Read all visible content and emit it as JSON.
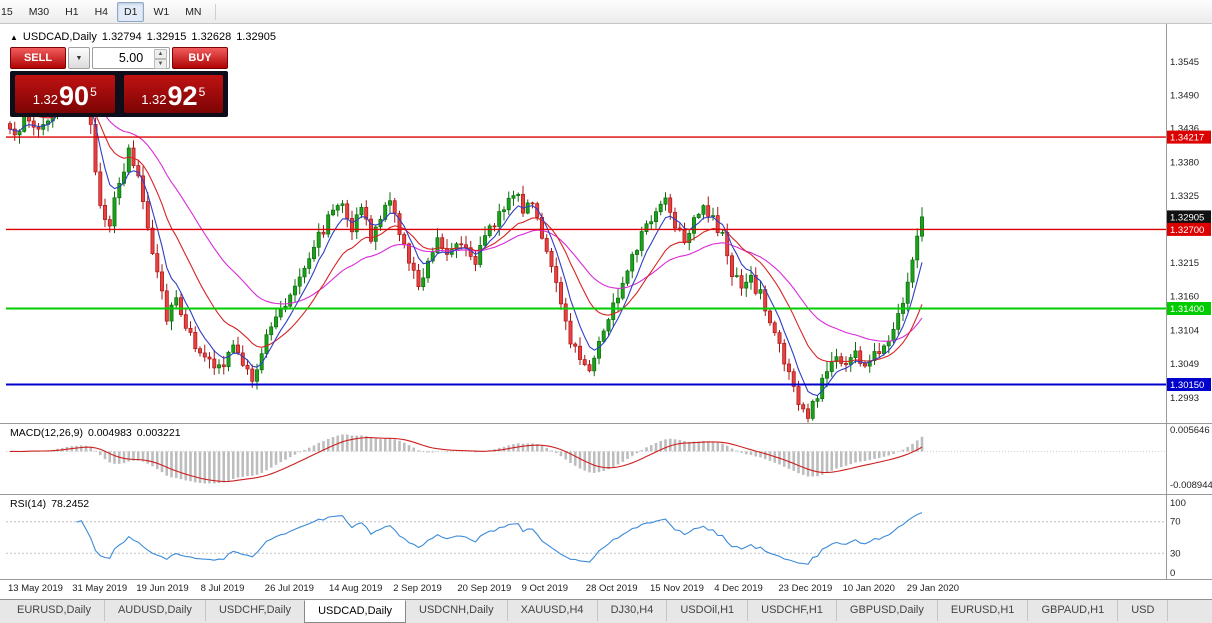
{
  "toolbar": {
    "timeframes": [
      {
        "label": "15",
        "active": false
      },
      {
        "label": "M30",
        "active": false
      },
      {
        "label": "H1",
        "active": false
      },
      {
        "label": "H4",
        "active": false
      },
      {
        "label": "D1",
        "active": true
      },
      {
        "label": "W1",
        "active": false
      },
      {
        "label": "MN",
        "active": false
      }
    ]
  },
  "chart": {
    "title": {
      "marker": "▲",
      "symbol": "USDCAD,Daily",
      "open": "1.32794",
      "high": "1.32915",
      "low": "1.32628",
      "close": "1.32905"
    },
    "trade_panel": {
      "sell_label": "SELL",
      "buy_label": "BUY",
      "volume": "5.00",
      "sell_price": {
        "prefix": "1.32",
        "big": "90",
        "sup": "5"
      },
      "buy_price": {
        "prefix": "1.32",
        "big": "92",
        "sup": "5"
      }
    },
    "price_axis": {
      "ticks": [
        "1.3545",
        "1.3490",
        "1.3436",
        "1.3380",
        "1.3325",
        "1.3215",
        "1.3160",
        "1.3104",
        "1.3049",
        "1.2993"
      ],
      "markers": [
        {
          "text": "1.34217",
          "value": 1.34217,
          "bg": "#dd0000",
          "fg": "#ffffff",
          "line": true,
          "line_width": 1.4
        },
        {
          "text": "1.32905",
          "value": 1.32905,
          "bg": "#111111",
          "fg": "#ffffff",
          "line": false,
          "line_width": 0
        },
        {
          "text": "1.32700",
          "value": 1.327,
          "bg": "#dd0000",
          "fg": "#ffffff",
          "line": true,
          "line_width": 1.4
        },
        {
          "text": "1.31400",
          "value": 1.314,
          "bg": "#00cc00",
          "fg": "#ffffff",
          "line": true,
          "line_width": 2
        },
        {
          "text": "1.30150",
          "value": 1.3015,
          "bg": "#0000cc",
          "fg": "#ffffff",
          "line": true,
          "line_width": 2
        }
      ]
    }
  },
  "macd": {
    "name": "MACD(12,26,9)",
    "main_value": "0.004983",
    "signal_value": "0.003221",
    "ticks": [
      "0.005646",
      "-0.008944"
    ],
    "params": {
      "fast": 12,
      "slow": 26,
      "signal": 9
    }
  },
  "rsi": {
    "name": "RSI(14)",
    "value": "78.2452",
    "ticks": [
      "100",
      "70",
      "30",
      "0"
    ],
    "levels": [
      70,
      30
    ],
    "period": 14
  },
  "date_axis": {
    "labels": [
      "13 May 2019",
      "31 May 2019",
      "19 Jun 2019",
      "8 Jul 2019",
      "26 Jul 2019",
      "14 Aug 2019",
      "2 Sep 2019",
      "20 Sep 2019",
      "9 Oct 2019",
      "28 Oct 2019",
      "15 Nov 2019",
      "4 Dec 2019",
      "23 Dec 2019",
      "10 Jan 2020",
      "29 Jan 2020"
    ]
  },
  "tabs": [
    {
      "label": "EURUSD,Daily",
      "active": false
    },
    {
      "label": "AUDUSD,Daily",
      "active": false
    },
    {
      "label": "USDCHF,Daily",
      "active": false
    },
    {
      "label": "USDCAD,Daily",
      "active": true
    },
    {
      "label": "USDCNH,Daily",
      "active": false
    },
    {
      "label": "XAUUSD,H4",
      "active": false
    },
    {
      "label": "DJ30,H4",
      "active": false
    },
    {
      "label": "USDOil,H1",
      "active": false
    },
    {
      "label": "USDCHF,H1",
      "active": false
    },
    {
      "label": "GBPUSD,Daily",
      "active": false
    },
    {
      "label": "EURUSD,H1",
      "active": false
    },
    {
      "label": "GBPAUD,H1",
      "active": false
    },
    {
      "label": "USD",
      "active": false
    }
  ],
  "chart_data": {
    "type": "candlestick",
    "symbol": "USDCAD",
    "timeframe": "Daily",
    "last_close": 1.32905,
    "candle_count": 193,
    "price_range": {
      "top": 1.3601,
      "bottom": 1.2955
    },
    "horizontal_levels": [
      1.34217,
      1.327,
      1.314,
      1.3015
    ],
    "price_path_anchors": [
      [
        0,
        1.3425
      ],
      [
        3,
        1.345
      ],
      [
        6,
        1.3436
      ],
      [
        9,
        1.3462
      ],
      [
        12,
        1.3492
      ],
      [
        15,
        1.3506
      ],
      [
        17,
        1.3432
      ],
      [
        19,
        1.331
      ],
      [
        21,
        1.3283
      ],
      [
        23,
        1.334
      ],
      [
        25,
        1.3396
      ],
      [
        27,
        1.336
      ],
      [
        29,
        1.3275
      ],
      [
        31,
        1.3205
      ],
      [
        33,
        1.313
      ],
      [
        35,
        1.316
      ],
      [
        38,
        1.3092
      ],
      [
        41,
        1.3066
      ],
      [
        43,
        1.3036
      ],
      [
        45,
        1.3048
      ],
      [
        47,
        1.3082
      ],
      [
        49,
        1.3042
      ],
      [
        51,
        1.3026
      ],
      [
        53,
        1.307
      ],
      [
        55,
        1.311
      ],
      [
        58,
        1.3148
      ],
      [
        61,
        1.3198
      ],
      [
        64,
        1.3246
      ],
      [
        66,
        1.3272
      ],
      [
        68,
        1.3302
      ],
      [
        70,
        1.3322
      ],
      [
        72,
        1.3272
      ],
      [
        74,
        1.3306
      ],
      [
        76,
        1.3252
      ],
      [
        78,
        1.3292
      ],
      [
        80,
        1.3312
      ],
      [
        82,
        1.3272
      ],
      [
        84,
        1.3212
      ],
      [
        86,
        1.3178
      ],
      [
        88,
        1.3222
      ],
      [
        90,
        1.3256
      ],
      [
        92,
        1.3232
      ],
      [
        94,
        1.3256
      ],
      [
        96,
        1.3242
      ],
      [
        98,
        1.3222
      ],
      [
        100,
        1.3252
      ],
      [
        102,
        1.3282
      ],
      [
        104,
        1.3312
      ],
      [
        106,
        1.3332
      ],
      [
        108,
        1.3302
      ],
      [
        110,
        1.3322
      ],
      [
        112,
        1.3262
      ],
      [
        114,
        1.3202
      ],
      [
        116,
        1.3142
      ],
      [
        118,
        1.3092
      ],
      [
        120,
        1.3056
      ],
      [
        122,
        1.3046
      ],
      [
        124,
        1.3082
      ],
      [
        126,
        1.3126
      ],
      [
        128,
        1.3162
      ],
      [
        130,
        1.3212
      ],
      [
        132,
        1.3246
      ],
      [
        134,
        1.3272
      ],
      [
        136,
        1.3302
      ],
      [
        138,
        1.3322
      ],
      [
        140,
        1.3282
      ],
      [
        142,
        1.3256
      ],
      [
        144,
        1.3292
      ],
      [
        146,
        1.3312
      ],
      [
        148,
        1.3282
      ],
      [
        150,
        1.3256
      ],
      [
        152,
        1.3202
      ],
      [
        154,
        1.3172
      ],
      [
        156,
        1.3186
      ],
      [
        158,
        1.3162
      ],
      [
        160,
        1.3116
      ],
      [
        162,
        1.3082
      ],
      [
        164,
        1.3032
      ],
      [
        166,
        1.2982
      ],
      [
        168,
        1.2962
      ],
      [
        170,
        1.2996
      ],
      [
        172,
        1.3044
      ],
      [
        174,
        1.306
      ],
      [
        176,
        1.3052
      ],
      [
        178,
        1.3066
      ],
      [
        180,
        1.3046
      ],
      [
        182,
        1.3062
      ],
      [
        184,
        1.3082
      ],
      [
        186,
        1.3112
      ],
      [
        188,
        1.3152
      ],
      [
        190,
        1.3222
      ],
      [
        192,
        1.32905
      ]
    ],
    "ma_seeds": {
      "fast": 1.3435,
      "mid": 1.3478,
      "slow": 1.352
    },
    "ma_periods": {
      "fast": 6,
      "mid": 16,
      "slow": 34
    },
    "colors": {
      "up": "#1ba11b",
      "up_border": "#0b6d0b",
      "down": "#e94040",
      "down_border": "#a81414",
      "ma_fast": "#2e3fc4",
      "ma_mid": "#d62424",
      "ma_slow": "#d92bd9",
      "macd_hist": "#bdbdbd",
      "macd_signal": "#cd2020",
      "rsi_line": "#3c8ad8"
    }
  }
}
